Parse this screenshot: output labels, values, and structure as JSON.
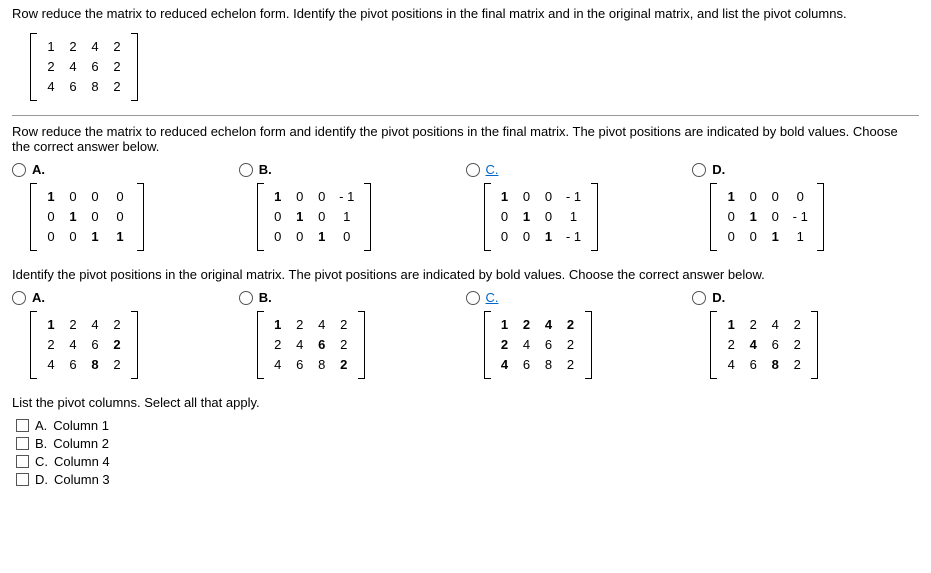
{
  "intro": "Row reduce the matrix to reduced echelon form. Identify the pivot positions in the final matrix and in the original matrix, and list the pivot columns.",
  "orig_matrix": [
    [
      "1",
      "2",
      "4",
      "2"
    ],
    [
      "2",
      "4",
      "6",
      "2"
    ],
    [
      "4",
      "6",
      "8",
      "2"
    ]
  ],
  "prompt1": "Row reduce the matrix to reduced echelon form and identify the pivot positions in the final matrix. The pivot positions are indicated by bold values. Choose the correct answer below.",
  "set1": {
    "A": {
      "label": "A.",
      "rows": [
        [
          "1",
          "0",
          "0",
          "0"
        ],
        [
          "0",
          "1",
          "0",
          "0"
        ],
        [
          "0",
          "0",
          "1",
          "1"
        ]
      ],
      "bold": [
        [
          0,
          0
        ],
        [
          1,
          1
        ],
        [
          2,
          2
        ],
        [
          2,
          3
        ]
      ]
    },
    "B": {
      "label": "B.",
      "rows": [
        [
          "1",
          "0",
          "0",
          "- 1"
        ],
        [
          "0",
          "1",
          "0",
          "1"
        ],
        [
          "0",
          "0",
          "1",
          "0"
        ]
      ],
      "bold": [
        [
          0,
          0
        ],
        [
          1,
          1
        ],
        [
          2,
          2
        ]
      ]
    },
    "C": {
      "label": "C.",
      "rows": [
        [
          "1",
          "0",
          "0",
          "- 1"
        ],
        [
          "0",
          "1",
          "0",
          "1"
        ],
        [
          "0",
          "0",
          "1",
          "- 1"
        ]
      ],
      "bold": [
        [
          0,
          0
        ],
        [
          1,
          1
        ],
        [
          2,
          2
        ]
      ],
      "link": true
    },
    "D": {
      "label": "D.",
      "rows": [
        [
          "1",
          "0",
          "0",
          "0"
        ],
        [
          "0",
          "1",
          "0",
          "- 1"
        ],
        [
          "0",
          "0",
          "1",
          "1"
        ]
      ],
      "bold": [
        [
          0,
          0
        ],
        [
          1,
          1
        ],
        [
          2,
          2
        ]
      ]
    }
  },
  "prompt2": "Identify the pivot positions in the original matrix. The pivot positions are indicated by bold values. Choose the correct answer below.",
  "set2": {
    "A": {
      "label": "A.",
      "rows": [
        [
          "1",
          "2",
          "4",
          "2"
        ],
        [
          "2",
          "4",
          "6",
          "2"
        ],
        [
          "4",
          "6",
          "8",
          "2"
        ]
      ],
      "bold": [
        [
          0,
          0
        ],
        [
          1,
          3
        ],
        [
          2,
          2
        ]
      ]
    },
    "B": {
      "label": "B.",
      "rows": [
        [
          "1",
          "2",
          "4",
          "2"
        ],
        [
          "2",
          "4",
          "6",
          "2"
        ],
        [
          "4",
          "6",
          "8",
          "2"
        ]
      ],
      "bold": [
        [
          0,
          0
        ],
        [
          1,
          2
        ],
        [
          2,
          3
        ]
      ]
    },
    "C": {
      "label": "C.",
      "rows": [
        [
          "1",
          "2",
          "4",
          "2"
        ],
        [
          "2",
          "4",
          "6",
          "2"
        ],
        [
          "4",
          "6",
          "8",
          "2"
        ]
      ],
      "bold": [
        [
          0,
          0
        ],
        [
          0,
          1
        ],
        [
          0,
          2
        ],
        [
          0,
          3
        ],
        [
          1,
          0
        ],
        [
          2,
          0
        ]
      ],
      "link": true
    },
    "D": {
      "label": "D.",
      "rows": [
        [
          "1",
          "2",
          "4",
          "2"
        ],
        [
          "2",
          "4",
          "6",
          "2"
        ],
        [
          "4",
          "6",
          "8",
          "2"
        ]
      ],
      "bold": [
        [
          0,
          0
        ],
        [
          1,
          1
        ],
        [
          2,
          2
        ]
      ]
    }
  },
  "prompt3": "List the pivot columns. Select all that apply.",
  "checks": [
    {
      "letter": "A.",
      "text": "Column 1"
    },
    {
      "letter": "B.",
      "text": "Column 2"
    },
    {
      "letter": "C.",
      "text": "Column 4"
    },
    {
      "letter": "D.",
      "text": "Column 3"
    }
  ]
}
